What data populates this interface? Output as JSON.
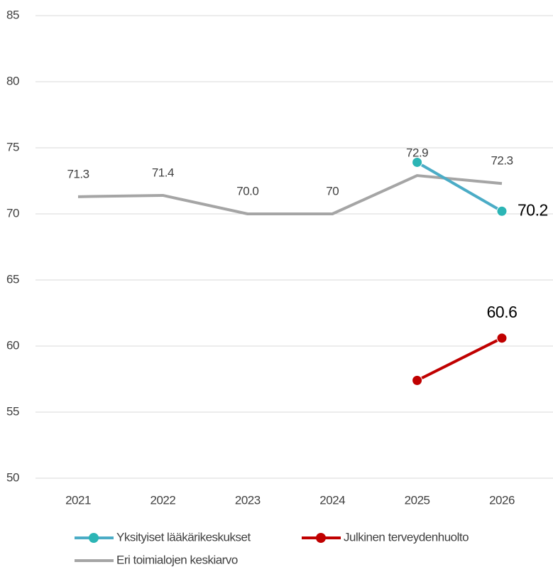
{
  "chart_data": {
    "type": "line",
    "categories": [
      "2021",
      "2022",
      "2023",
      "2024",
      "2025",
      "2026"
    ],
    "series": [
      {
        "name": "Yksityiset lääkärikeskukset",
        "color": "#4bacc6",
        "marker_color": "#2cb5b5",
        "marker": true,
        "values": [
          null,
          null,
          null,
          null,
          73.9,
          70.2
        ],
        "value_labels": [
          null,
          null,
          null,
          null,
          null,
          "70.2"
        ]
      },
      {
        "name": "Julkinen terveydenhuolto",
        "color": "#c00000",
        "marker_color": "#c00000",
        "marker": true,
        "values": [
          null,
          null,
          null,
          null,
          57.4,
          60.6
        ],
        "value_labels": [
          null,
          null,
          null,
          null,
          null,
          "60.6"
        ]
      },
      {
        "name": "Eri toimialojen keskiarvo",
        "color": "#a5a5a5",
        "marker": false,
        "values": [
          71.3,
          71.4,
          70.0,
          70,
          72.9,
          72.3
        ],
        "value_labels": [
          "71.3",
          "71.4",
          "70.0",
          "70",
          "72.9",
          "72.3"
        ]
      }
    ],
    "ylim": [
      50,
      85
    ],
    "yticks": [
      50,
      55,
      60,
      65,
      70,
      75,
      80,
      85
    ],
    "grid": true,
    "legend": "bottom"
  }
}
